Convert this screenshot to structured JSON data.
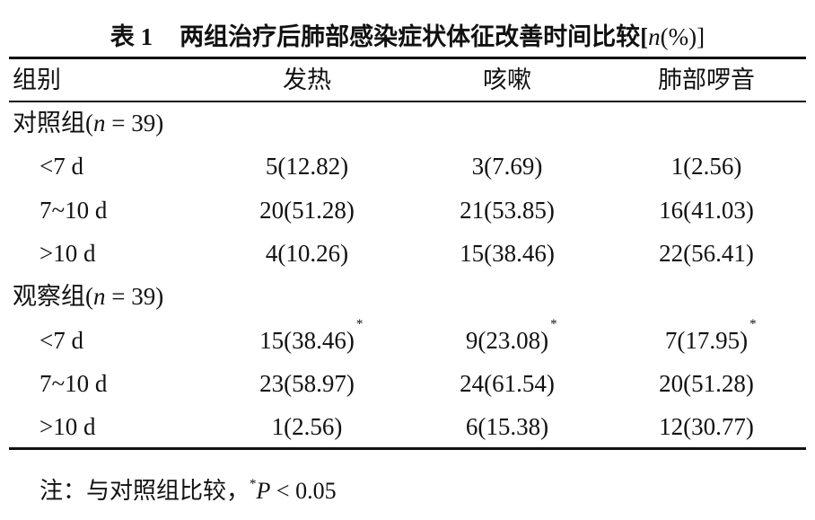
{
  "table": {
    "title": {
      "label": "表 1",
      "text": "两组治疗后肺部感染症状体征改善时间比较[",
      "var": "n",
      "rest": "(%)]"
    },
    "header": [
      "组别",
      "发热",
      "咳嗽",
      "肺部啰音"
    ],
    "groups": [
      {
        "name": "对照组(",
        "var": "n",
        "rest": " = 39)",
        "rows": [
          {
            "label": "<7 d",
            "cells": [
              {
                "text": "5(12.82)"
              },
              {
                "text": "3(7.69)"
              },
              {
                "text": "1(2.56)"
              }
            ]
          },
          {
            "label": "7~10 d",
            "cells": [
              {
                "text": "20(51.28)"
              },
              {
                "text": "21(53.85)"
              },
              {
                "text": "16(41.03)"
              }
            ]
          },
          {
            "label": ">10 d",
            "cells": [
              {
                "text": "4(10.26)"
              },
              {
                "text": "15(38.46)"
              },
              {
                "text": "22(56.41)"
              }
            ]
          }
        ]
      },
      {
        "name": "观察组(",
        "var": "n",
        "rest": " = 39)",
        "rows": [
          {
            "label": "<7 d",
            "cells": [
              {
                "text": "15(38.46)",
                "mark": "*"
              },
              {
                "text": "9(23.08)",
                "mark": "*"
              },
              {
                "text": "7(17.95)",
                "mark": "*"
              }
            ]
          },
          {
            "label": "7~10 d",
            "cells": [
              {
                "text": "23(58.97)"
              },
              {
                "text": "24(61.54)"
              },
              {
                "text": "20(51.28)"
              }
            ]
          },
          {
            "label": ">10 d",
            "cells": [
              {
                "text": "1(2.56)"
              },
              {
                "text": "6(15.38)"
              },
              {
                "text": "12(30.77)"
              }
            ]
          }
        ]
      }
    ]
  },
  "note": {
    "text": "注：与对照组比较，",
    "mark": "*",
    "var": "P",
    "rest": " < 0.05"
  }
}
